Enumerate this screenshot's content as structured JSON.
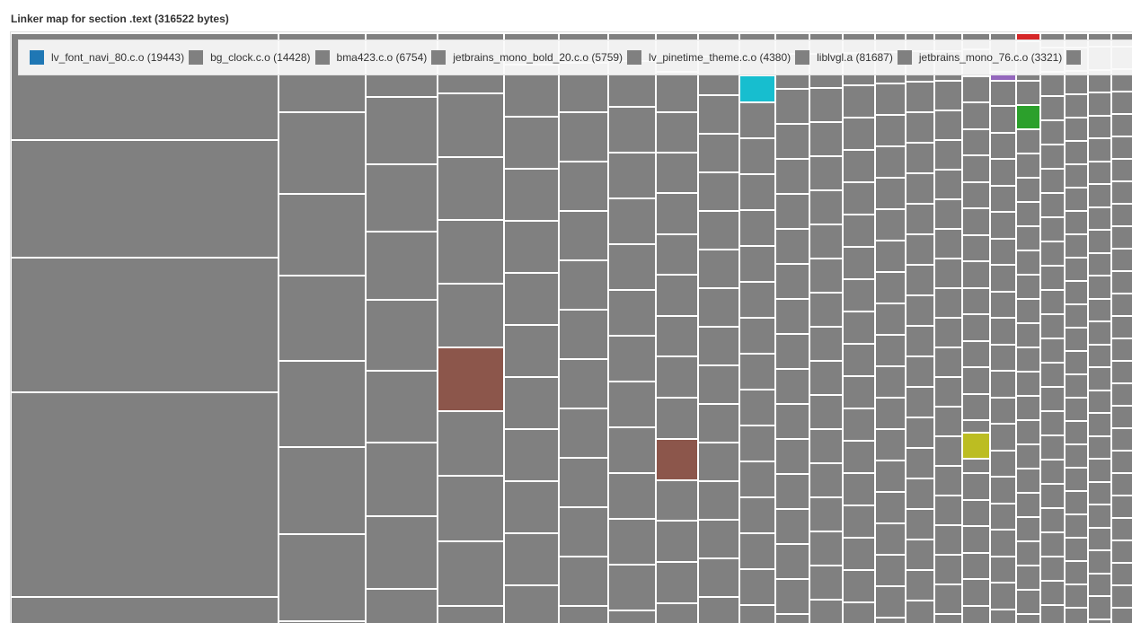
{
  "title": "Linker map for section .text (316522 bytes)",
  "chart_data": {
    "type": "treemap",
    "title": "Linker map for section .text (316522 bytes)",
    "total_bytes": 316522,
    "legend_placement": "top",
    "legend": [
      {
        "label": "lv_font_navi_80.c.o (19443)",
        "name": "lv_font_navi_80.c.o",
        "bytes": 19443,
        "color": "#1f77b4"
      },
      {
        "label": "bg_clock.c.o (14428)",
        "name": "bg_clock.c.o",
        "bytes": 14428,
        "color": "#808080"
      },
      {
        "label": "bma423.c.o (6754)",
        "name": "bma423.c.o",
        "bytes": 6754,
        "color": "#808080"
      },
      {
        "label": "jetbrains_mono_bold_20.c.o (5759)",
        "name": "jetbrains_mono_bold_20.c.o",
        "bytes": 5759,
        "color": "#808080"
      },
      {
        "label": "lv_pinetime_theme.c.o (4380)",
        "name": "lv_pinetime_theme.c.o",
        "bytes": 4380,
        "color": "#808080"
      },
      {
        "label": "liblvgl.a (81687)",
        "name": "liblvgl.a",
        "bytes": 81687,
        "color": "#808080"
      },
      {
        "label": "jetbrains_mono_76.c.o (3321)",
        "name": "jetbrains_mono_76.c.o",
        "bytes": 3321,
        "color": "#808080"
      },
      {
        "label": "",
        "name": "",
        "color": "#808080"
      }
    ],
    "colors": {
      "default": "#808080",
      "highlight": [
        "#8c564b",
        "#17becf",
        "#bcbd22",
        "#9467bd",
        "#2ca02c",
        "#d62728"
      ]
    }
  }
}
